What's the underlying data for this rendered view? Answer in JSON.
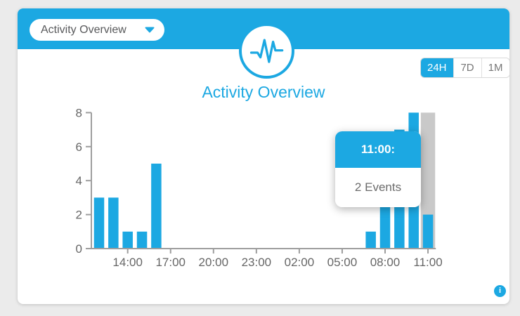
{
  "window": {
    "title": "Activity Overview"
  },
  "colors": {
    "accent_blue": "#1CA8E2",
    "bar_blue": "#1CA8E2",
    "highlight_gray": "#c9c9c9",
    "axis_gray": "#9e9e9e",
    "label_gray": "#666666",
    "card_bg": "#ffffff",
    "page_bg": "#ebebeb"
  },
  "header": {
    "dropdown": {
      "label": "Activity Overview"
    }
  },
  "range_selector": {
    "options": [
      {
        "label": "24H",
        "selected": true
      },
      {
        "label": "7D",
        "selected": false
      },
      {
        "label": "1M",
        "selected": false
      }
    ]
  },
  "chart_title": "Activity Overview",
  "tooltip": {
    "header": "11:00:",
    "body": "2 Events"
  },
  "info_button": {
    "glyph": "i"
  },
  "chart_data": {
    "type": "bar",
    "title": "Activity Overview",
    "xlabel": "",
    "ylabel": "",
    "x": [
      "12:00",
      "13:00",
      "14:00",
      "15:00",
      "16:00",
      "17:00",
      "18:00",
      "19:00",
      "20:00",
      "21:00",
      "22:00",
      "23:00",
      "00:00",
      "01:00",
      "02:00",
      "03:00",
      "04:00",
      "05:00",
      "06:00",
      "07:00",
      "08:00",
      "09:00",
      "10:00",
      "11:00"
    ],
    "values": [
      3,
      3,
      1,
      1,
      5,
      0,
      0,
      0,
      0,
      0,
      0,
      0,
      0,
      0,
      0,
      0,
      0,
      0,
      0,
      1,
      6,
      7,
      8,
      2
    ],
    "x_tick_labels": [
      "14:00",
      "17:00",
      "20:00",
      "23:00",
      "02:00",
      "05:00",
      "08:00",
      "11:00"
    ],
    "y_tick_labels": [
      "0",
      "2",
      "4",
      "6",
      "8"
    ],
    "ylim": [
      0,
      8
    ],
    "grid": false,
    "legend": false,
    "highlighted_bar": {
      "x": "11:00",
      "value": 2,
      "tooltip_header": "11:00:",
      "tooltip_body": "2 Events"
    }
  }
}
